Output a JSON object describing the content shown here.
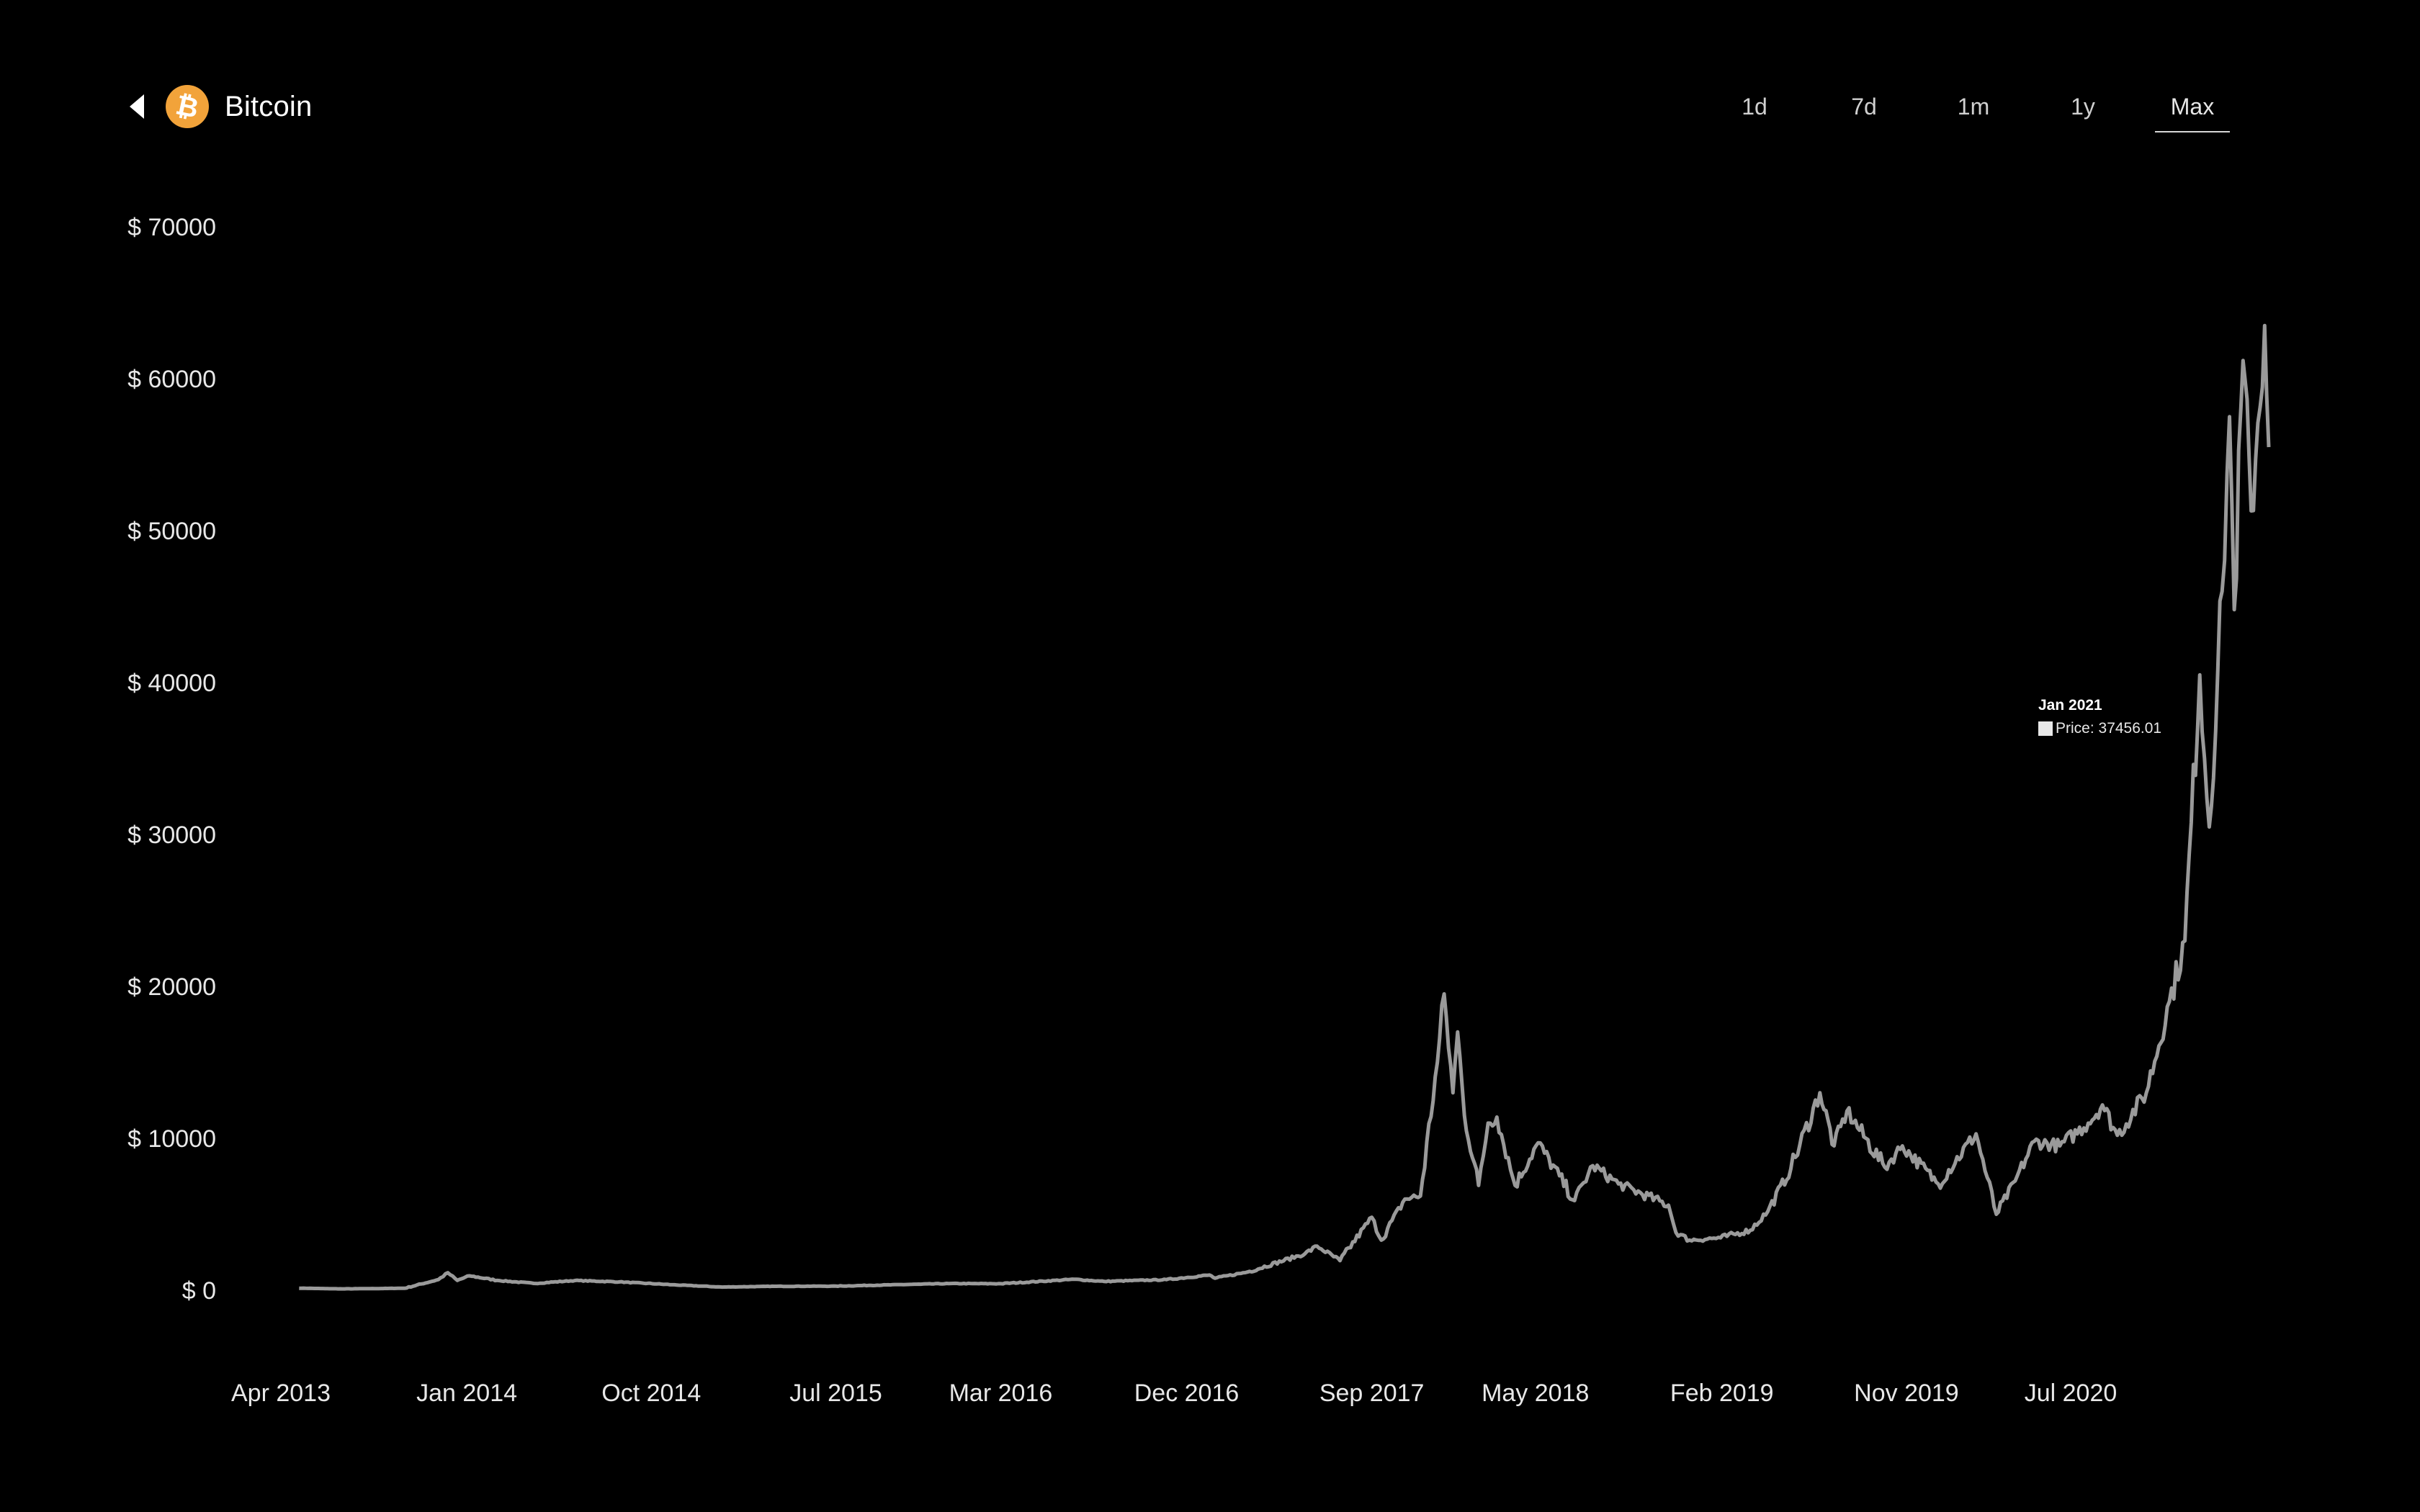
{
  "header": {
    "back_icon": "chevron-left-icon",
    "logo_icon": "bitcoin-logo-icon",
    "title": "Bitcoin"
  },
  "range_tabs": [
    {
      "label": "1d",
      "active": false
    },
    {
      "label": "7d",
      "active": false
    },
    {
      "label": "1m",
      "active": false
    },
    {
      "label": "1y",
      "active": false
    },
    {
      "label": "Max",
      "active": true
    }
  ],
  "tooltip": {
    "title": "Jan 2021",
    "label": "Price: 37456.01"
  },
  "colors": {
    "background": "#000000",
    "line": "#9a9a9a",
    "logo": "#f2a33a",
    "text": "#ffffff"
  },
  "chart_data": {
    "type": "line",
    "title": "",
    "xlabel": "",
    "ylabel": "",
    "ylim": [
      0,
      70000
    ],
    "y_ticks": [
      "$ 0",
      "$ 10000",
      "$ 20000",
      "$ 30000",
      "$ 40000",
      "$ 50000",
      "$ 60000",
      "$ 70000"
    ],
    "x_ticks": [
      "Apr 2013",
      "Jan 2014",
      "Oct 2014",
      "Jul 2015",
      "Mar 2016",
      "Dec 2016",
      "Sep 2017",
      "May 2018",
      "Feb 2019",
      "Nov 2019",
      "Jul 2020"
    ],
    "grid": false,
    "legend": "none",
    "series": [
      {
        "name": "Price",
        "x": [
          "2013-04-28",
          "2013-07-01",
          "2013-10-01",
          "2013-11-20",
          "2013-12-04",
          "2013-12-18",
          "2014-01-05",
          "2014-02-15",
          "2014-04-10",
          "2014-06-10",
          "2014-08-15",
          "2014-11-01",
          "2015-01-14",
          "2015-04-01",
          "2015-07-01",
          "2015-11-04",
          "2015-12-15",
          "2016-03-01",
          "2016-06-18",
          "2016-08-01",
          "2016-11-01",
          "2017-01-04",
          "2017-01-12",
          "2017-03-01",
          "2017-05-25",
          "2017-06-12",
          "2017-07-16",
          "2017-09-01",
          "2017-09-15",
          "2017-10-20",
          "2017-11-12",
          "2017-12-07",
          "2017-12-17",
          "2017-12-30",
          "2018-01-06",
          "2018-01-16",
          "2018-02-06",
          "2018-02-20",
          "2018-03-05",
          "2018-04-01",
          "2018-05-05",
          "2018-06-28",
          "2018-07-25",
          "2018-09-01",
          "2018-11-14",
          "2018-11-25",
          "2018-12-15",
          "2019-01-30",
          "2019-03-15",
          "2019-04-10",
          "2019-05-14",
          "2019-06-26",
          "2019-07-17",
          "2019-08-05",
          "2019-09-30",
          "2019-10-26",
          "2019-12-18",
          "2020-02-12",
          "2020-03-13",
          "2020-04-10",
          "2020-05-08",
          "2020-06-15",
          "2020-07-27",
          "2020-08-17",
          "2020-09-08",
          "2020-10-21",
          "2020-11-24",
          "2020-12-17",
          "2021-01-08",
          "2021-01-22",
          "2021-02-10",
          "2021-02-21",
          "2021-02-28",
          "2021-03-13",
          "2021-03-25",
          "2021-04-14",
          "2021-04-20"
        ],
        "values": [
          135,
          90,
          130,
          700,
          1150,
          650,
          950,
          650,
          450,
          640,
          550,
          360,
          210,
          260,
          270,
          400,
          440,
          430,
          720,
          580,
          700,
          1000,
          790,
          1200,
          2400,
          2900,
          1950,
          4800,
          3300,
          6000,
          6200,
          15000,
          19500,
          13000,
          17000,
          11500,
          6900,
          11000,
          11400,
          6900,
          9700,
          5900,
          8200,
          7000,
          5600,
          3800,
          3300,
          3450,
          3950,
          5200,
          8000,
          13000,
          9500,
          11800,
          8100,
          9500,
          7000,
          10300,
          5000,
          7200,
          9800,
          9500,
          11000,
          12200,
          10200,
          13000,
          19000,
          23000,
          40500,
          30500,
          46000,
          57500,
          44800,
          61200,
          51300,
          63500,
          55500
        ]
      }
    ]
  }
}
